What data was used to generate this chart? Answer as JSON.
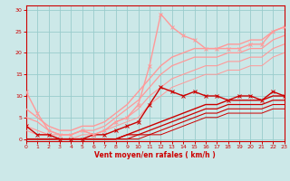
{
  "xlabel": "Vent moyen/en rafales ( km/h )",
  "bg_color": "#cce8e8",
  "grid_color": "#99cccc",
  "xlim": [
    0,
    23
  ],
  "ylim": [
    -0.5,
    31
  ],
  "yticks": [
    0,
    5,
    10,
    15,
    20,
    25,
    30
  ],
  "xticks": [
    0,
    1,
    2,
    3,
    4,
    5,
    6,
    7,
    8,
    9,
    10,
    11,
    12,
    13,
    14,
    15,
    16,
    17,
    18,
    19,
    20,
    21,
    22,
    23
  ],
  "series": [
    {
      "x": [
        0,
        1,
        2,
        3,
        4,
        5,
        6,
        7,
        8,
        9,
        10,
        11,
        12,
        13,
        14,
        15,
        16,
        17,
        18,
        19,
        20,
        21,
        22,
        23
      ],
      "y": [
        3,
        1,
        1,
        0,
        0,
        0,
        1,
        1,
        2,
        3,
        4,
        8,
        12,
        11,
        10,
        11,
        10,
        10,
        9,
        10,
        10,
        9,
        11,
        10
      ],
      "color": "#cc0000",
      "lw": 1.0,
      "marker": "x",
      "ms": 2.5,
      "zorder": 5
    },
    {
      "x": [
        0,
        1,
        2,
        3,
        4,
        5,
        6,
        7,
        8,
        9,
        10,
        11,
        12,
        13,
        14,
        15,
        16,
        17,
        18,
        19,
        20,
        21,
        22,
        23
      ],
      "y": [
        0,
        0,
        0,
        0,
        0,
        0,
        0,
        0,
        0,
        1,
        2,
        3,
        4,
        5,
        6,
        7,
        8,
        8,
        9,
        9,
        9,
        9,
        10,
        10
      ],
      "color": "#cc0000",
      "lw": 1.0,
      "marker": null,
      "ms": 0,
      "zorder": 3
    },
    {
      "x": [
        0,
        1,
        2,
        3,
        4,
        5,
        6,
        7,
        8,
        9,
        10,
        11,
        12,
        13,
        14,
        15,
        16,
        17,
        18,
        19,
        20,
        21,
        22,
        23
      ],
      "y": [
        0,
        0,
        0,
        0,
        0,
        0,
        0,
        0,
        0,
        1,
        1,
        2,
        3,
        4,
        5,
        6,
        7,
        7,
        8,
        8,
        8,
        8,
        9,
        9
      ],
      "color": "#cc0000",
      "lw": 0.9,
      "marker": null,
      "ms": 0,
      "zorder": 3
    },
    {
      "x": [
        0,
        1,
        2,
        3,
        4,
        5,
        6,
        7,
        8,
        9,
        10,
        11,
        12,
        13,
        14,
        15,
        16,
        17,
        18,
        19,
        20,
        21,
        22,
        23
      ],
      "y": [
        0,
        0,
        0,
        0,
        0,
        0,
        0,
        0,
        0,
        0,
        1,
        1,
        2,
        3,
        4,
        5,
        6,
        6,
        7,
        7,
        7,
        7,
        8,
        8
      ],
      "color": "#cc0000",
      "lw": 0.8,
      "marker": null,
      "ms": 0,
      "zorder": 3
    },
    {
      "x": [
        0,
        1,
        2,
        3,
        4,
        5,
        6,
        7,
        8,
        9,
        10,
        11,
        12,
        13,
        14,
        15,
        16,
        17,
        18,
        19,
        20,
        21,
        22,
        23
      ],
      "y": [
        0,
        0,
        0,
        0,
        0,
        0,
        0,
        0,
        0,
        0,
        0,
        1,
        1,
        2,
        3,
        4,
        5,
        5,
        6,
        6,
        6,
        6,
        7,
        7
      ],
      "color": "#cc0000",
      "lw": 0.7,
      "marker": null,
      "ms": 0,
      "zorder": 3
    },
    {
      "x": [
        0,
        1,
        2,
        3,
        4,
        5,
        6,
        7,
        8,
        9,
        10,
        11,
        12,
        13,
        14,
        15,
        16,
        17,
        18,
        19,
        20,
        21,
        22,
        23
      ],
      "y": [
        11,
        6,
        2,
        1,
        1,
        2,
        1,
        2,
        4,
        5,
        8,
        17,
        29,
        26,
        24,
        23,
        21,
        21,
        21,
        21,
        22,
        22,
        25,
        26
      ],
      "color": "#ff9999",
      "lw": 1.0,
      "marker": "x",
      "ms": 2.5,
      "zorder": 5
    },
    {
      "x": [
        0,
        1,
        2,
        3,
        4,
        5,
        6,
        7,
        8,
        9,
        10,
        11,
        12,
        13,
        14,
        15,
        16,
        17,
        18,
        19,
        20,
        21,
        22,
        23
      ],
      "y": [
        7,
        5,
        3,
        2,
        2,
        3,
        3,
        4,
        6,
        8,
        11,
        14,
        17,
        19,
        20,
        21,
        21,
        21,
        22,
        22,
        23,
        23,
        25,
        26
      ],
      "color": "#ff9999",
      "lw": 1.0,
      "marker": null,
      "ms": 0,
      "zorder": 3
    },
    {
      "x": [
        0,
        1,
        2,
        3,
        4,
        5,
        6,
        7,
        8,
        9,
        10,
        11,
        12,
        13,
        14,
        15,
        16,
        17,
        18,
        19,
        20,
        21,
        22,
        23
      ],
      "y": [
        5,
        4,
        2,
        1,
        1,
        2,
        2,
        3,
        5,
        7,
        9,
        12,
        15,
        17,
        18,
        19,
        19,
        19,
        20,
        20,
        21,
        21,
        23,
        24
      ],
      "color": "#ff9999",
      "lw": 0.9,
      "marker": null,
      "ms": 0,
      "zorder": 3
    },
    {
      "x": [
        0,
        1,
        2,
        3,
        4,
        5,
        6,
        7,
        8,
        9,
        10,
        11,
        12,
        13,
        14,
        15,
        16,
        17,
        18,
        19,
        20,
        21,
        22,
        23
      ],
      "y": [
        3,
        2,
        1,
        1,
        1,
        2,
        1,
        2,
        4,
        5,
        7,
        10,
        12,
        14,
        15,
        16,
        17,
        17,
        18,
        18,
        19,
        19,
        21,
        22
      ],
      "color": "#ff9999",
      "lw": 0.8,
      "marker": null,
      "ms": 0,
      "zorder": 3
    },
    {
      "x": [
        0,
        1,
        2,
        3,
        4,
        5,
        6,
        7,
        8,
        9,
        10,
        11,
        12,
        13,
        14,
        15,
        16,
        17,
        18,
        19,
        20,
        21,
        22,
        23
      ],
      "y": [
        2,
        1,
        1,
        0,
        0,
        1,
        1,
        2,
        3,
        4,
        5,
        8,
        10,
        12,
        13,
        14,
        15,
        15,
        16,
        16,
        17,
        17,
        19,
        20
      ],
      "color": "#ff9999",
      "lw": 0.7,
      "marker": null,
      "ms": 0,
      "zorder": 3
    }
  ]
}
